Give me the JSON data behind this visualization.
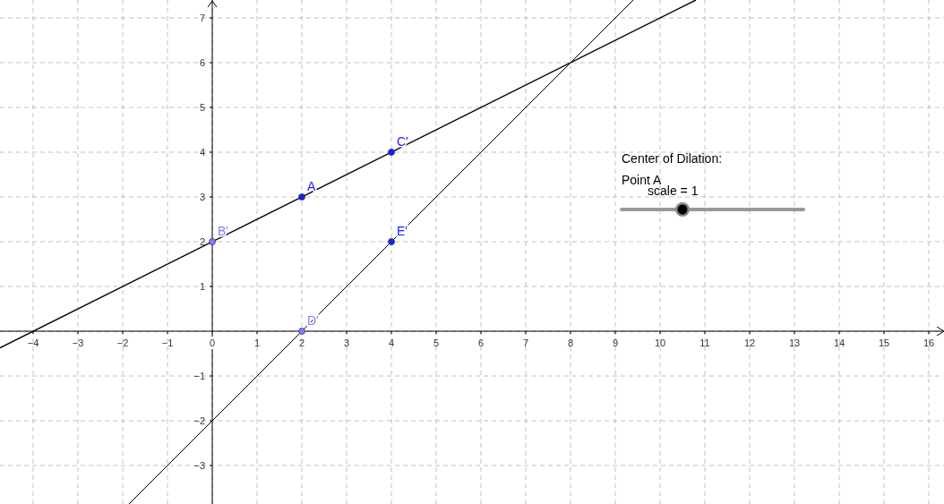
{
  "chart_data": {
    "type": "scatter",
    "xlim": [
      -4.74,
      16.34
    ],
    "ylim": [
      -3.86,
      7.4
    ],
    "xticks": [
      -4,
      -3,
      -2,
      -1,
      0,
      1,
      2,
      3,
      4,
      5,
      6,
      7,
      8,
      9,
      10,
      11,
      12,
      13,
      14,
      15,
      16
    ],
    "yticks": [
      -3,
      -2,
      -1,
      {
        "value": 0,
        "label": null
      },
      1,
      2,
      3,
      4,
      5,
      6,
      7
    ],
    "grid": true,
    "marker": "circle",
    "annotations": [
      "Center of Dilation:",
      "Point A",
      "scale = 1"
    ],
    "series": [
      {
        "type": "line",
        "marker": "none",
        "color": "#000000",
        "x": [
          -4.74,
          10.8
        ],
        "values": [
          -0.37,
          7.4
        ]
      },
      {
        "type": "line",
        "marker": "none",
        "color": "#000000",
        "x": [
          -1.86,
          9.4
        ],
        "values": [
          -3.86,
          7.4
        ]
      },
      {
        "name": "A",
        "color": "#1a1aff",
        "x": [
          2
        ],
        "values": [
          3
        ]
      },
      {
        "name": "B'",
        "color": "#7f7fff",
        "x": [
          0
        ],
        "values": [
          2
        ]
      },
      {
        "name": "C'",
        "color": "#1a1aff",
        "x": [
          4
        ],
        "values": [
          4
        ]
      },
      {
        "name": "D'",
        "color": "#7f7fff",
        "x": [
          2
        ],
        "values": [
          0
        ]
      },
      {
        "name": "E'",
        "color": "#1a1aff",
        "x": [
          4
        ],
        "values": [
          2
        ]
      }
    ]
  }
}
